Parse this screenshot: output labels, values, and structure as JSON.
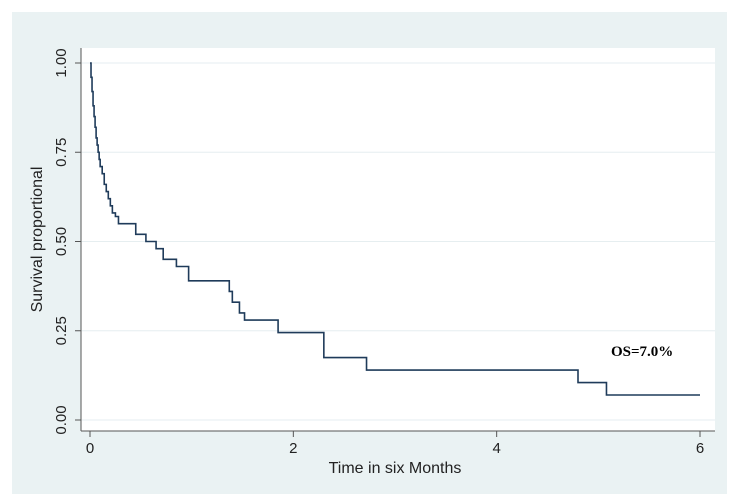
{
  "chart_data": {
    "type": "line",
    "step": true,
    "title": "",
    "xlabel": "Time in six Months",
    "ylabel": "Survival proportional",
    "xlim": [
      0,
      6
    ],
    "ylim": [
      0,
      1
    ],
    "x_ticks": [
      "0",
      "2",
      "4",
      "6"
    ],
    "y_ticks": [
      "0.00",
      "0.25",
      "0.50",
      "0.75",
      "1.00"
    ],
    "grid": "horizontal",
    "annotation": "OS=7.0%",
    "colors": {
      "line": "#1f3b5a",
      "background": "#eaf2f3",
      "plot_background": "#ffffff",
      "grid": "#e6eef0"
    },
    "series": [
      {
        "x": [
          0,
          0.01,
          0.02,
          0.03,
          0.04,
          0.05,
          0.06,
          0.07,
          0.08,
          0.09,
          0.1,
          0.12,
          0.14,
          0.16,
          0.18,
          0.2,
          0.22,
          0.25,
          0.28,
          0.32,
          0.45,
          0.55,
          0.65,
          0.72,
          0.85,
          0.97,
          1.37,
          1.4,
          1.47,
          1.52,
          1.85,
          2.27,
          2.3,
          2.72,
          4.8,
          5.08,
          6.0
        ],
        "y": [
          1.0,
          0.96,
          0.92,
          0.88,
          0.85,
          0.82,
          0.79,
          0.77,
          0.75,
          0.73,
          0.71,
          0.69,
          0.66,
          0.64,
          0.62,
          0.6,
          0.58,
          0.57,
          0.55,
          0.55,
          0.52,
          0.5,
          0.48,
          0.45,
          0.43,
          0.39,
          0.36,
          0.33,
          0.3,
          0.28,
          0.245,
          0.245,
          0.175,
          0.14,
          0.105,
          0.07,
          0.07
        ]
      }
    ]
  }
}
